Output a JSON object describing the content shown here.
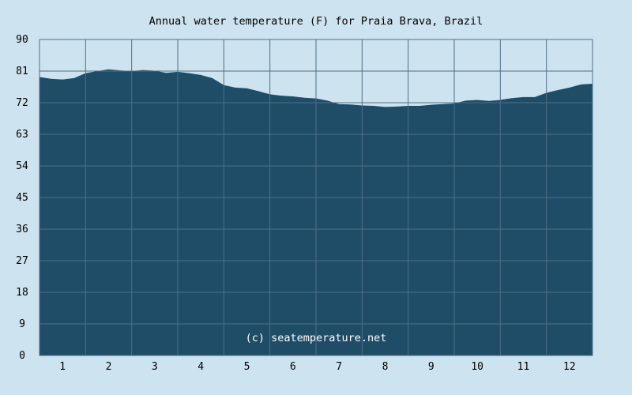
{
  "chart_data": {
    "type": "area",
    "title": "Annual water temperature (F) for Praia Brava, Brazil",
    "xlabel": "",
    "ylabel": "",
    "ylim": [
      0,
      90
    ],
    "yticks": [
      0,
      9,
      18,
      27,
      36,
      45,
      54,
      63,
      72,
      81,
      90
    ],
    "xticks": [
      "1",
      "2",
      "3",
      "4",
      "5",
      "6",
      "7",
      "8",
      "9",
      "10",
      "11",
      "12"
    ],
    "xlim": [
      0.5,
      12.5
    ],
    "grid": true,
    "annotation": "(c) seatemperature.net",
    "series": [
      {
        "x": [
          0.5,
          0.75,
          1.0,
          1.25,
          1.5,
          1.75,
          2.0,
          2.25,
          2.5,
          2.75,
          3.0,
          3.25,
          3.5,
          3.75,
          4.0,
          4.25,
          4.5,
          4.75,
          5.0,
          5.25,
          5.5,
          5.75,
          6.0,
          6.25,
          6.5,
          6.75,
          7.0,
          7.25,
          7.5,
          7.75,
          8.0,
          8.25,
          8.5,
          8.75,
          9.0,
          9.25,
          9.5,
          9.75,
          10.0,
          10.25,
          10.5,
          10.75,
          11.0,
          11.25,
          11.5,
          11.75,
          12.0,
          12.25,
          12.5
        ],
        "values": [
          79.3,
          78.8,
          78.6,
          79.0,
          80.4,
          81.0,
          81.5,
          81.2,
          81.0,
          81.3,
          81.1,
          80.5,
          80.8,
          80.4,
          79.9,
          79.0,
          77.0,
          76.3,
          76.1,
          75.3,
          74.4,
          74.0,
          73.8,
          73.4,
          73.2,
          72.6,
          71.6,
          71.5,
          71.2,
          71.1,
          70.8,
          70.9,
          71.1,
          71.1,
          71.4,
          71.6,
          71.8,
          72.6,
          72.8,
          72.5,
          72.8,
          73.3,
          73.6,
          73.6,
          74.8,
          75.6,
          76.3,
          77.2,
          77.4
        ]
      }
    ],
    "colors": {
      "background": "#cde3ef",
      "area": "#1f4d68",
      "grid": "#4f6f86"
    }
  }
}
